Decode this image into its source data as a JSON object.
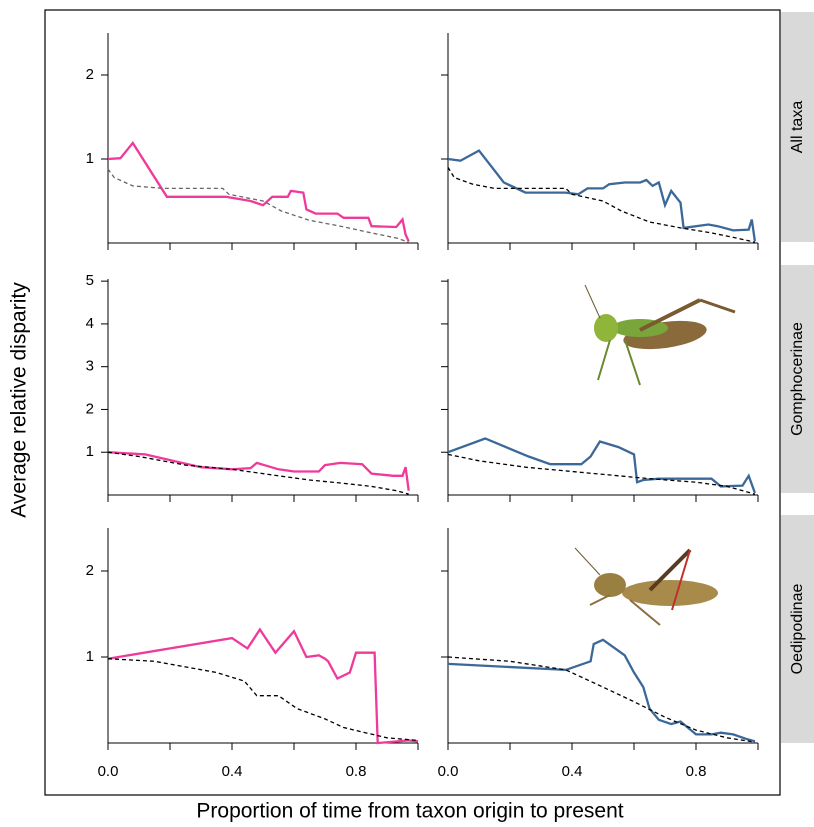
{
  "x_label": "Proportion of time from taxon origin to present",
  "y_label": "Average relative disparity",
  "chart_data": [
    {
      "type": "line",
      "xlim": [
        0,
        1
      ],
      "ylim": [
        0,
        2.5
      ],
      "xticks": [
        {
          "value": 0,
          "label": null
        },
        {
          "value": 0.2,
          "label": null
        },
        {
          "value": 0.4,
          "label": null
        },
        {
          "value": 0.6,
          "label": null
        },
        {
          "value": 0.8,
          "label": null
        },
        {
          "value": 1,
          "label": null
        }
      ],
      "yticks": [
        1,
        2
      ],
      "series": [
        {
          "color": "#f0399a",
          "dash": false,
          "x": [
            0,
            0.04,
            0.08,
            0.19,
            0.38,
            0.46,
            0.5,
            0.53,
            0.58,
            0.59,
            0.63,
            0.64,
            0.67,
            0.74,
            0.76,
            0.84,
            0.85,
            0.93,
            0.95,
            0.96,
            0.97
          ],
          "values": [
            1.0,
            1.01,
            1.19,
            0.55,
            0.55,
            0.5,
            0.45,
            0.55,
            0.55,
            0.62,
            0.6,
            0.4,
            0.35,
            0.35,
            0.3,
            0.3,
            0.2,
            0.19,
            0.28,
            0.1,
            0.02
          ]
        },
        {
          "color": "#666666",
          "dash": true,
          "x": [
            0,
            0.02,
            0.08,
            0.18,
            0.37,
            0.39,
            0.5,
            0.56,
            0.65,
            0.75,
            0.85,
            0.93,
            0.97
          ],
          "values": [
            0.88,
            0.78,
            0.68,
            0.65,
            0.65,
            0.58,
            0.5,
            0.38,
            0.27,
            0.2,
            0.12,
            0.06,
            0.01
          ]
        }
      ]
    },
    {
      "type": "line",
      "xlim": [
        0,
        1
      ],
      "ylim": [
        0,
        2.5
      ],
      "strip": "All taxa",
      "xticks": [
        {
          "value": 0,
          "label": null
        },
        {
          "value": 0.2,
          "label": null
        },
        {
          "value": 0.4,
          "label": null
        },
        {
          "value": 0.6,
          "label": null
        },
        {
          "value": 0.8,
          "label": null
        },
        {
          "value": 1,
          "label": null
        }
      ],
      "yticks": [
        {
          "value": 1,
          "label": null
        },
        {
          "value": 2,
          "label": null
        }
      ],
      "series": [
        {
          "color": "#3b6898",
          "dash": false,
          "x": [
            0,
            0.04,
            0.1,
            0.18,
            0.25,
            0.38,
            0.42,
            0.45,
            0.5,
            0.52,
            0.57,
            0.62,
            0.64,
            0.66,
            0.68,
            0.7,
            0.72,
            0.75,
            0.76,
            0.84,
            0.87,
            0.92,
            0.97,
            0.98,
            0.99
          ],
          "values": [
            1.0,
            0.98,
            1.1,
            0.72,
            0.6,
            0.6,
            0.58,
            0.65,
            0.65,
            0.7,
            0.72,
            0.72,
            0.75,
            0.68,
            0.72,
            0.45,
            0.62,
            0.48,
            0.18,
            0.22,
            0.2,
            0.15,
            0.16,
            0.28,
            0.02
          ]
        },
        {
          "color": "#000000",
          "dash": true,
          "x": [
            0,
            0.02,
            0.08,
            0.15,
            0.38,
            0.4,
            0.5,
            0.56,
            0.65,
            0.75,
            0.85,
            0.93,
            0.99
          ],
          "values": [
            0.9,
            0.78,
            0.7,
            0.65,
            0.65,
            0.58,
            0.5,
            0.38,
            0.25,
            0.18,
            0.12,
            0.06,
            0.01
          ]
        }
      ]
    },
    {
      "type": "line",
      "xlim": [
        0,
        1
      ],
      "ylim": [
        0,
        5.05
      ],
      "xticks": [
        {
          "value": 0,
          "label": null
        },
        {
          "value": 0.2,
          "label": null
        },
        {
          "value": 0.4,
          "label": null
        },
        {
          "value": 0.6,
          "label": null
        },
        {
          "value": 0.8,
          "label": null
        },
        {
          "value": 1,
          "label": null
        }
      ],
      "yticks": [
        1,
        2,
        3,
        4,
        5
      ],
      "series": [
        {
          "color": "#f0399a",
          "dash": false,
          "x": [
            0,
            0.12,
            0.3,
            0.4,
            0.46,
            0.48,
            0.55,
            0.6,
            0.68,
            0.7,
            0.75,
            0.82,
            0.85,
            0.92,
            0.95,
            0.96,
            0.97
          ],
          "values": [
            1.0,
            0.95,
            0.65,
            0.6,
            0.63,
            0.75,
            0.6,
            0.55,
            0.55,
            0.7,
            0.75,
            0.72,
            0.5,
            0.45,
            0.45,
            0.65,
            0.1
          ]
        },
        {
          "color": "#000000",
          "dash": true,
          "x": [
            0,
            0.1,
            0.25,
            0.4,
            0.55,
            0.65,
            0.75,
            0.85,
            0.93,
            0.97
          ],
          "values": [
            1.0,
            0.9,
            0.7,
            0.6,
            0.45,
            0.35,
            0.28,
            0.2,
            0.1,
            0.02
          ]
        }
      ]
    },
    {
      "type": "line",
      "xlim": [
        0,
        1
      ],
      "ylim": [
        0,
        5.05
      ],
      "strip": "Gomphocerinae",
      "xticks": [
        {
          "value": 0,
          "label": null
        },
        {
          "value": 0.2,
          "label": null
        },
        {
          "value": 0.4,
          "label": null
        },
        {
          "value": 0.6,
          "label": null
        },
        {
          "value": 0.8,
          "label": null
        },
        {
          "value": 1,
          "label": null
        }
      ],
      "yticks": [
        {
          "value": 1,
          "label": null
        },
        {
          "value": 2,
          "label": null
        },
        {
          "value": 3,
          "label": null
        },
        {
          "value": 4,
          "label": null
        },
        {
          "value": 5,
          "label": null
        }
      ],
      "series": [
        {
          "color": "#3b6898",
          "dash": false,
          "x": [
            0,
            0.12,
            0.26,
            0.33,
            0.43,
            0.46,
            0.49,
            0.55,
            0.6,
            0.61,
            0.63,
            0.68,
            0.85,
            0.88,
            0.95,
            0.97,
            0.99
          ],
          "values": [
            1.0,
            1.32,
            0.9,
            0.72,
            0.72,
            0.9,
            1.25,
            1.12,
            0.95,
            0.3,
            0.35,
            0.38,
            0.38,
            0.2,
            0.22,
            0.45,
            0.05
          ]
        },
        {
          "color": "#000000",
          "dash": true,
          "x": [
            0,
            0.1,
            0.25,
            0.4,
            0.55,
            0.65,
            0.8,
            0.9,
            0.99
          ],
          "values": [
            0.95,
            0.8,
            0.65,
            0.55,
            0.45,
            0.38,
            0.3,
            0.2,
            0.02
          ]
        }
      ]
    },
    {
      "type": "line",
      "xlim": [
        0,
        1
      ],
      "ylim": [
        0,
        2.5
      ],
      "xticks": [
        {
          "value": 0,
          "label": "0.0"
        },
        {
          "value": 0.2,
          "label": null
        },
        {
          "value": 0.4,
          "label": "0.4"
        },
        {
          "value": 0.6,
          "label": null
        },
        {
          "value": 0.8,
          "label": "0.8"
        },
        {
          "value": 1,
          "label": null
        }
      ],
      "yticks": [
        1,
        2
      ],
      "series": [
        {
          "color": "#f0399a",
          "dash": false,
          "x": [
            0,
            0.4,
            0.45,
            0.49,
            0.54,
            0.6,
            0.64,
            0.68,
            0.7,
            0.71,
            0.74,
            0.78,
            0.8,
            0.86,
            0.87,
            0.97,
            1.0
          ],
          "values": [
            0.98,
            1.22,
            1.1,
            1.32,
            1.05,
            1.3,
            1.0,
            1.02,
            0.98,
            0.95,
            0.75,
            0.82,
            1.05,
            1.05,
            0.0,
            0.03,
            0.02
          ]
        },
        {
          "color": "#000000",
          "dash": true,
          "x": [
            0,
            0.15,
            0.35,
            0.44,
            0.48,
            0.55,
            0.61,
            0.7,
            0.76,
            0.83,
            0.9,
            1.0
          ],
          "values": [
            0.98,
            0.95,
            0.82,
            0.72,
            0.55,
            0.55,
            0.4,
            0.28,
            0.18,
            0.12,
            0.06,
            0.03
          ]
        }
      ]
    },
    {
      "type": "line",
      "xlim": [
        0,
        1
      ],
      "ylim": [
        0,
        2.5
      ],
      "strip": "Oedipodinae",
      "xticks": [
        {
          "value": 0,
          "label": "0.0"
        },
        {
          "value": 0.2,
          "label": null
        },
        {
          "value": 0.4,
          "label": "0.4"
        },
        {
          "value": 0.6,
          "label": null
        },
        {
          "value": 0.8,
          "label": "0.8"
        },
        {
          "value": 1,
          "label": null
        }
      ],
      "yticks": [
        {
          "value": 1,
          "label": null
        },
        {
          "value": 2,
          "label": null
        }
      ],
      "series": [
        {
          "color": "#3b6898",
          "dash": false,
          "x": [
            0,
            0.38,
            0.46,
            0.47,
            0.5,
            0.57,
            0.6,
            0.63,
            0.65,
            0.68,
            0.72,
            0.75,
            0.8,
            0.85,
            0.88,
            0.92,
            0.96,
            0.99
          ],
          "values": [
            0.92,
            0.85,
            0.95,
            1.15,
            1.2,
            1.02,
            0.82,
            0.65,
            0.4,
            0.27,
            0.22,
            0.25,
            0.1,
            0.1,
            0.12,
            0.1,
            0.05,
            0.02
          ]
        },
        {
          "color": "#000000",
          "dash": true,
          "x": [
            0,
            0.2,
            0.38,
            0.5,
            0.6,
            0.7,
            0.8,
            0.9,
            0.99
          ],
          "values": [
            1.0,
            0.95,
            0.85,
            0.65,
            0.48,
            0.3,
            0.15,
            0.06,
            0.01
          ]
        }
      ]
    }
  ]
}
